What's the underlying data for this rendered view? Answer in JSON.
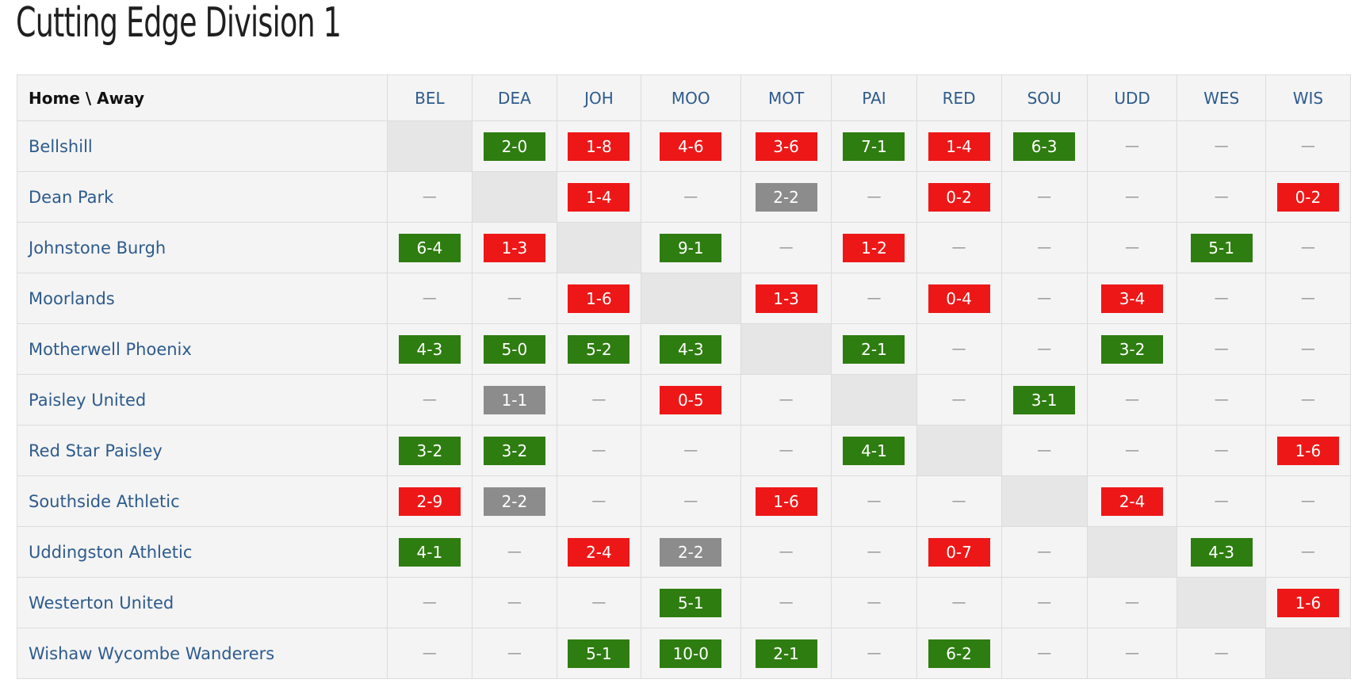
{
  "page": {
    "title": "Cutting Edge Division 1"
  },
  "table": {
    "corner_label": "Home \\ Away",
    "columns": [
      "BEL",
      "DEA",
      "JOH",
      "MOO",
      "MOT",
      "PAI",
      "RED",
      "SOU",
      "UDD",
      "WES",
      "WIS"
    ],
    "no_result": "—",
    "colors": {
      "win": "#2e7d10",
      "loss": "#ee1717",
      "draw": "#8c8c8c",
      "link": "#2e5b8c"
    },
    "rows": [
      {
        "team": "Bellshill",
        "cells": [
          null,
          "2-0",
          "1-8",
          "4-6",
          "3-6",
          "7-1",
          "1-4",
          "6-3",
          "",
          "",
          ""
        ]
      },
      {
        "team": "Dean Park",
        "cells": [
          "",
          null,
          "1-4",
          "",
          "2-2",
          "",
          "0-2",
          "",
          "",
          "",
          "0-2"
        ]
      },
      {
        "team": "Johnstone Burgh",
        "cells": [
          "6-4",
          "1-3",
          null,
          "9-1",
          "",
          "1-2",
          "",
          "",
          "",
          "5-1",
          ""
        ]
      },
      {
        "team": "Moorlands",
        "cells": [
          "",
          "",
          "1-6",
          null,
          "1-3",
          "",
          "0-4",
          "",
          "3-4",
          "",
          ""
        ]
      },
      {
        "team": "Motherwell Phoenix",
        "cells": [
          "4-3",
          "5-0",
          "5-2",
          "4-3",
          null,
          "2-1",
          "",
          "",
          "3-2",
          "",
          ""
        ]
      },
      {
        "team": "Paisley United",
        "cells": [
          "",
          "1-1",
          "",
          "0-5",
          "",
          null,
          "",
          "3-1",
          "",
          "",
          ""
        ]
      },
      {
        "team": "Red Star Paisley",
        "cells": [
          "3-2",
          "3-2",
          "",
          "",
          "",
          "4-1",
          null,
          "",
          "",
          "",
          "1-6"
        ]
      },
      {
        "team": "Southside Athletic",
        "cells": [
          "2-9",
          "2-2",
          "",
          "",
          "1-6",
          "",
          "",
          null,
          "2-4",
          "",
          ""
        ]
      },
      {
        "team": "Uddingston Athletic",
        "cells": [
          "4-1",
          "",
          "2-4",
          "2-2",
          "",
          "",
          "0-7",
          "",
          null,
          "4-3",
          ""
        ]
      },
      {
        "team": "Westerton United",
        "cells": [
          "",
          "",
          "",
          "5-1",
          "",
          "",
          "",
          "",
          "",
          null,
          "1-6"
        ]
      },
      {
        "team": "Wishaw Wycombe Wanderers",
        "cells": [
          "",
          "",
          "5-1",
          "10-0",
          "2-1",
          "",
          "6-2",
          "",
          "",
          "",
          null
        ]
      }
    ]
  }
}
